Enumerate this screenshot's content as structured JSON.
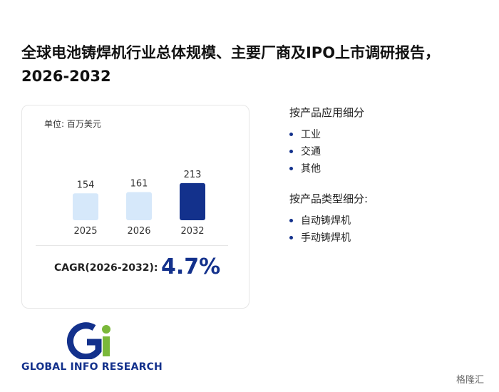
{
  "header": {
    "title": "全球电池铸焊机行业总体规模、主要厂商及IPO上市调研报告，2026-2032"
  },
  "card": {
    "unit": "单位: 百万美元",
    "chart": {
      "type": "bar",
      "categories": [
        "2025",
        "2026",
        "2032"
      ],
      "values": [
        154,
        161,
        213
      ],
      "colors": [
        "#d6e8fa",
        "#d6e8fa",
        "#13318c"
      ]
    },
    "cagr_label": "CAGR(2026-2032):",
    "cagr_value": "4.7%"
  },
  "sections": [
    {
      "title": "按产品应用细分",
      "items": [
        "工业",
        "交通",
        "其他"
      ]
    },
    {
      "title": "按产品类型细分:",
      "items": [
        "自动铸焊机",
        "手动铸焊机"
      ]
    }
  ],
  "logo": {
    "text": "GLOBAL INFO RESEARCH"
  },
  "corner_badge": "格隆汇"
}
